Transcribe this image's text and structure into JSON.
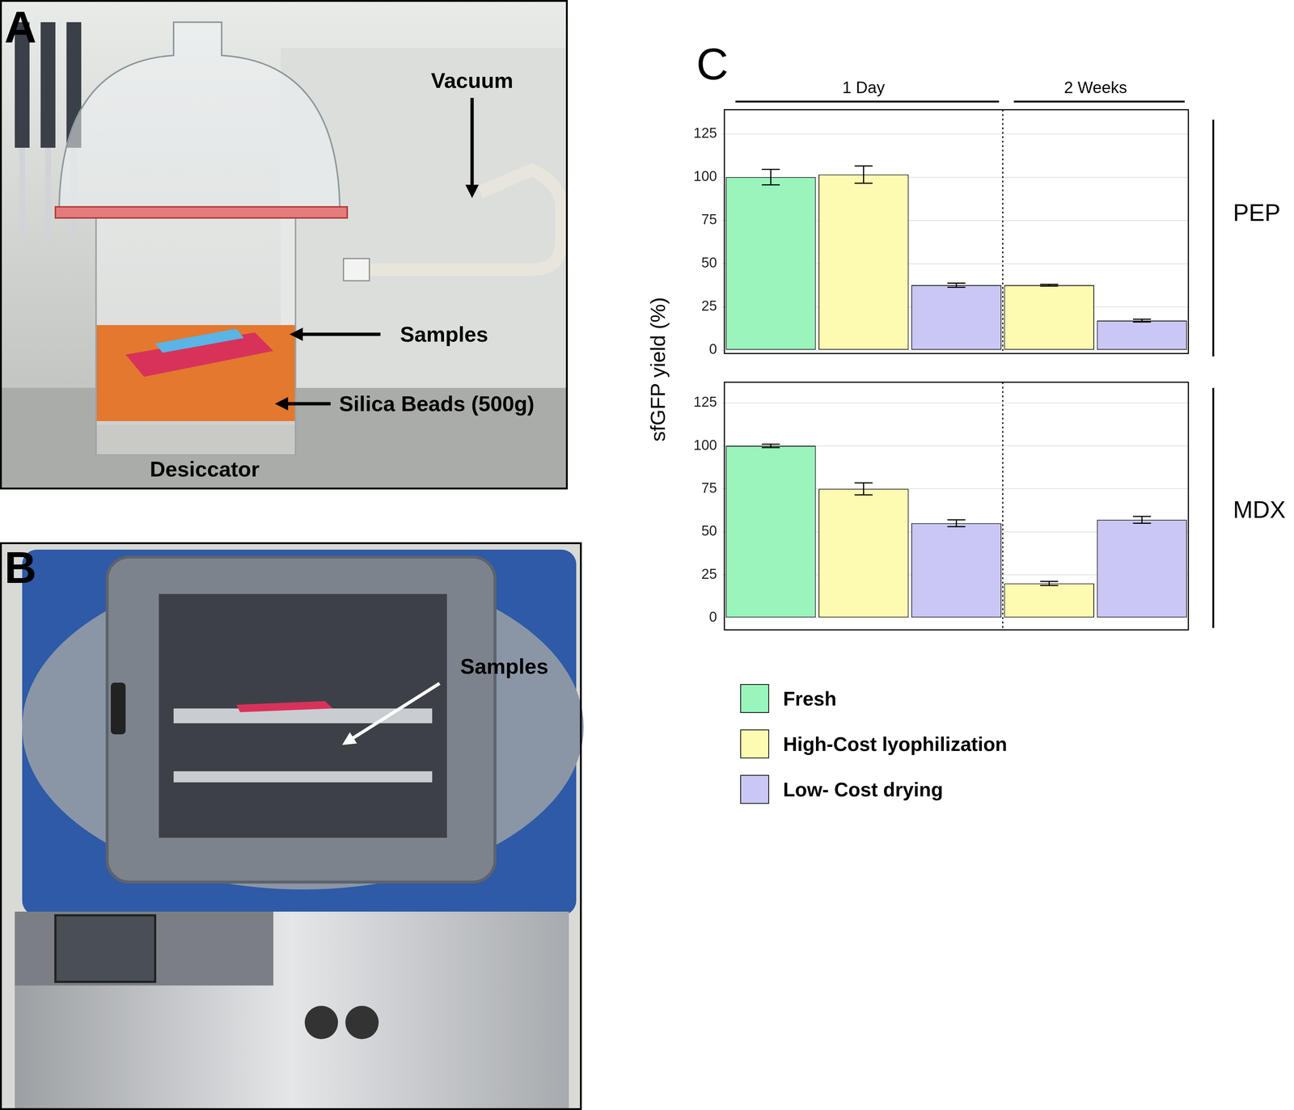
{
  "panels": [
    {
      "label": "A",
      "annotations": [
        "Vacuum",
        "Samples",
        "Silica Beads (500g)",
        "Desiccator"
      ]
    },
    {
      "label": "B",
      "annotations": [
        "Samples"
      ]
    },
    {
      "label": "C"
    }
  ],
  "y_label": "sfGFP yield (%)",
  "x_groups": [
    {
      "label": "1 Day",
      "count": 3
    },
    {
      "label": "2 Weeks",
      "count": 2
    }
  ],
  "chart_data": [
    {
      "type": "bar",
      "title": "PEP",
      "categories": [
        null,
        null,
        null,
        null,
        null
      ],
      "series": [
        {
          "name": "Fresh",
          "color": "#99f5bb",
          "values": [
            100,
            null,
            null,
            null,
            null
          ],
          "errors": [
            4.5,
            null,
            null,
            null,
            null
          ]
        },
        {
          "name": "High-Cost lyophilization",
          "color": "#fdfab2",
          "values": [
            null,
            101.5,
            null,
            37.5,
            null
          ],
          "errors": [
            null,
            5,
            null,
            0.5,
            null
          ]
        },
        {
          "name": "Low- Cost drying",
          "color": "#cac7f5",
          "values": [
            null,
            null,
            37.5,
            null,
            17
          ],
          "errors": [
            null,
            null,
            1.2,
            null,
            0.8
          ]
        }
      ],
      "ylim": [
        -2,
        139
      ],
      "yticks": [
        0,
        25,
        50,
        75,
        100,
        125
      ],
      "grid": true,
      "tick_labels": "y",
      "legend": "bottom"
    },
    {
      "type": "bar",
      "title": "MDX",
      "categories": [
        null,
        null,
        null,
        null,
        null
      ],
      "series": [
        {
          "name": "Fresh",
          "color": "#99f5bb",
          "values": [
            100,
            null,
            null,
            null,
            null
          ],
          "errors": [
            1,
            null,
            null,
            null,
            null
          ]
        },
        {
          "name": "High-Cost lyophilization",
          "color": "#fdfab2",
          "values": [
            null,
            75,
            null,
            20,
            null
          ],
          "errors": [
            null,
            3.5,
            null,
            1.2,
            null
          ]
        },
        {
          "name": "Low- Cost drying",
          "color": "#cac7f5",
          "values": [
            null,
            null,
            55,
            null,
            57
          ],
          "errors": [
            null,
            null,
            2,
            null,
            2
          ]
        }
      ],
      "ylim": [
        -7,
        137
      ],
      "yticks": [
        0,
        25,
        50,
        75,
        100,
        125
      ],
      "grid": true,
      "tick_labels": "y"
    }
  ]
}
